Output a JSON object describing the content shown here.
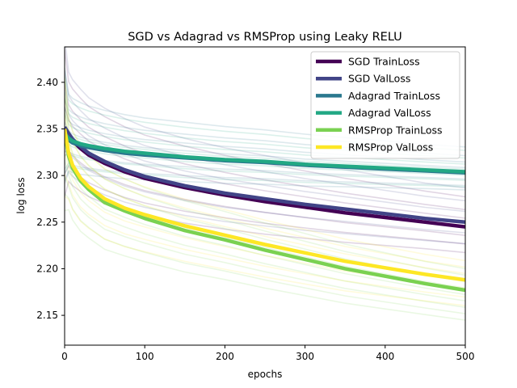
{
  "chart_data": {
    "type": "line",
    "title": "SGD vs Adagrad vs RMSProp using Leaky RELU",
    "xlabel": "epochs",
    "ylabel": "log loss",
    "xlim": [
      0,
      500
    ],
    "ylim": [
      2.118,
      2.438
    ],
    "xticks": [
      0,
      100,
      200,
      300,
      400,
      500
    ],
    "yticks": [
      2.15,
      2.2,
      2.25,
      2.3,
      2.35,
      2.4
    ],
    "ytick_labels": [
      "2.15",
      "2.20",
      "2.25",
      "2.30",
      "2.35",
      "2.40"
    ],
    "grid": false,
    "legend_position": "top-right",
    "x": [
      0,
      5,
      10,
      20,
      30,
      50,
      75,
      100,
      150,
      200,
      250,
      300,
      350,
      400,
      450,
      500
    ],
    "series": [
      {
        "name": "SGD TrainLoss",
        "color": "#440154",
        "values": [
          2.35,
          2.343,
          2.337,
          2.329,
          2.322,
          2.313,
          2.304,
          2.297,
          2.287,
          2.279,
          2.272,
          2.266,
          2.26,
          2.255,
          2.25,
          2.245
        ]
      },
      {
        "name": "SGD ValLoss",
        "color": "#414487",
        "values": [
          2.352,
          2.345,
          2.339,
          2.331,
          2.324,
          2.315,
          2.306,
          2.299,
          2.289,
          2.281,
          2.275,
          2.269,
          2.264,
          2.259,
          2.254,
          2.25
        ]
      },
      {
        "name": "Adagrad TrainLoss",
        "color": "#2a788e",
        "values": [
          2.343,
          2.338,
          2.335,
          2.332,
          2.33,
          2.327,
          2.324,
          2.322,
          2.319,
          2.316,
          2.314,
          2.311,
          2.309,
          2.307,
          2.305,
          2.303
        ]
      },
      {
        "name": "Adagrad ValLoss",
        "color": "#22a884",
        "values": [
          2.345,
          2.34,
          2.337,
          2.334,
          2.332,
          2.329,
          2.326,
          2.324,
          2.32,
          2.317,
          2.315,
          2.312,
          2.31,
          2.308,
          2.306,
          2.304
        ]
      },
      {
        "name": "RMSProp TrainLoss",
        "color": "#7ad151",
        "values": [
          2.347,
          2.321,
          2.308,
          2.294,
          2.285,
          2.271,
          2.262,
          2.254,
          2.241,
          2.231,
          2.22,
          2.21,
          2.2,
          2.192,
          2.184,
          2.177
        ]
      },
      {
        "name": "RMSProp ValLoss",
        "color": "#fde725",
        "values": [
          2.35,
          2.324,
          2.311,
          2.297,
          2.288,
          2.275,
          2.265,
          2.258,
          2.246,
          2.236,
          2.226,
          2.217,
          2.208,
          2.201,
          2.194,
          2.188
        ]
      }
    ]
  }
}
